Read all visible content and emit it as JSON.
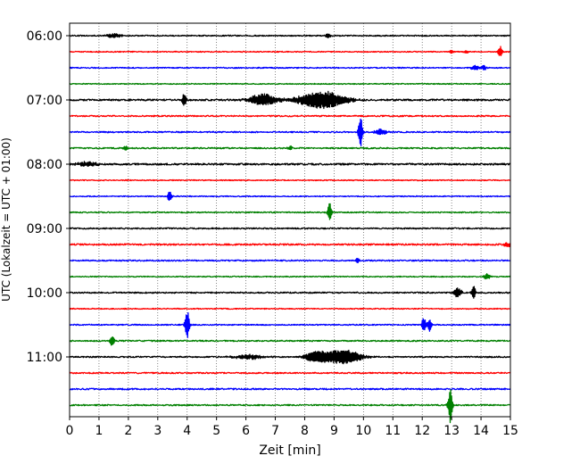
{
  "chart_data": {
    "type": "line",
    "title": "",
    "xlabel": "Zeit  [min]",
    "ylabel": "UTC (Lokalzeit = UTC + 01:00)",
    "xlim": [
      0,
      15
    ],
    "xticks": [
      0,
      1,
      2,
      3,
      4,
      5,
      6,
      7,
      8,
      9,
      10,
      11,
      12,
      13,
      14,
      15
    ],
    "ylim_traces": [
      -0.5,
      24.5
    ],
    "yticks": [
      {
        "trace": 0,
        "label": "06:00"
      },
      {
        "trace": 4,
        "label": "07:00"
      },
      {
        "trace": 8,
        "label": "08:00"
      },
      {
        "trace": 12,
        "label": "09:00"
      },
      {
        "trace": 16,
        "label": "10:00"
      },
      {
        "trace": 20,
        "label": "11:00"
      }
    ],
    "grid": {
      "x": true,
      "y": false,
      "style": "dotted"
    },
    "trace_colors": [
      "#000000",
      "#ff0000",
      "#0000ff",
      "#008000"
    ],
    "traces": [
      {
        "index": 0,
        "color": "#000000",
        "noise": 0.08,
        "events": [
          {
            "t": 1.5,
            "amp": 0.25,
            "dur": 0.4
          },
          {
            "t": 8.8,
            "amp": 0.3,
            "dur": 0.15
          }
        ]
      },
      {
        "index": 1,
        "color": "#ff0000",
        "noise": 0.07,
        "events": [
          {
            "t": 13.0,
            "amp": 0.3,
            "dur": 0.1
          },
          {
            "t": 13.5,
            "amp": 0.25,
            "dur": 0.1
          },
          {
            "t": 14.65,
            "amp": 0.8,
            "dur": 0.1
          }
        ]
      },
      {
        "index": 2,
        "color": "#0000ff",
        "noise": 0.08,
        "events": [
          {
            "t": 13.8,
            "amp": 0.3,
            "dur": 0.2
          },
          {
            "t": 14.1,
            "amp": 0.35,
            "dur": 0.1
          }
        ]
      },
      {
        "index": 3,
        "color": "#008000",
        "noise": 0.07,
        "events": []
      },
      {
        "index": 4,
        "color": "#000000",
        "noise": 0.12,
        "events": [
          {
            "t": 3.9,
            "amp": 0.9,
            "dur": 0.1
          },
          {
            "t": 6.6,
            "amp": 0.8,
            "dur": 0.7
          },
          {
            "t": 8.6,
            "amp": 1.2,
            "dur": 1.2
          }
        ]
      },
      {
        "index": 5,
        "color": "#ff0000",
        "noise": 0.09,
        "events": []
      },
      {
        "index": 6,
        "color": "#0000ff",
        "noise": 0.09,
        "events": [
          {
            "t": 9.9,
            "amp": 2.2,
            "dur": 0.1
          },
          {
            "t": 10.6,
            "amp": 0.4,
            "dur": 0.3
          }
        ]
      },
      {
        "index": 7,
        "color": "#008000",
        "noise": 0.09,
        "events": [
          {
            "t": 1.9,
            "amp": 0.35,
            "dur": 0.1
          },
          {
            "t": 7.5,
            "amp": 0.3,
            "dur": 0.1
          }
        ]
      },
      {
        "index": 8,
        "color": "#000000",
        "noise": 0.12,
        "events": [
          {
            "t": 0.6,
            "amp": 0.3,
            "dur": 0.6
          }
        ]
      },
      {
        "index": 9,
        "color": "#ff0000",
        "noise": 0.07,
        "events": []
      },
      {
        "index": 10,
        "color": "#0000ff",
        "noise": 0.07,
        "events": [
          {
            "t": 3.4,
            "amp": 0.8,
            "dur": 0.1
          }
        ]
      },
      {
        "index": 11,
        "color": "#008000",
        "noise": 0.08,
        "events": [
          {
            "t": 8.85,
            "amp": 1.3,
            "dur": 0.1
          }
        ]
      },
      {
        "index": 12,
        "color": "#000000",
        "noise": 0.09,
        "events": []
      },
      {
        "index": 13,
        "color": "#ff0000",
        "noise": 0.11,
        "events": [
          {
            "t": 14.9,
            "amp": 0.3,
            "dur": 0.2
          }
        ]
      },
      {
        "index": 14,
        "color": "#0000ff",
        "noise": 0.09,
        "events": [
          {
            "t": 9.8,
            "amp": 0.35,
            "dur": 0.1
          }
        ]
      },
      {
        "index": 15,
        "color": "#008000",
        "noise": 0.07,
        "events": [
          {
            "t": 14.2,
            "amp": 0.4,
            "dur": 0.15
          }
        ]
      },
      {
        "index": 16,
        "color": "#000000",
        "noise": 0.09,
        "events": [
          {
            "t": 13.2,
            "amp": 0.7,
            "dur": 0.2
          },
          {
            "t": 13.75,
            "amp": 0.9,
            "dur": 0.1
          }
        ]
      },
      {
        "index": 17,
        "color": "#ff0000",
        "noise": 0.07,
        "events": []
      },
      {
        "index": 18,
        "color": "#0000ff",
        "noise": 0.08,
        "events": [
          {
            "t": 4.0,
            "amp": 2.3,
            "dur": 0.1
          },
          {
            "t": 12.05,
            "amp": 1.2,
            "dur": 0.1
          },
          {
            "t": 12.25,
            "amp": 0.9,
            "dur": 0.1
          }
        ]
      },
      {
        "index": 19,
        "color": "#008000",
        "noise": 0.09,
        "events": [
          {
            "t": 1.45,
            "amp": 0.8,
            "dur": 0.1
          }
        ]
      },
      {
        "index": 20,
        "color": "#000000",
        "noise": 0.09,
        "events": [
          {
            "t": 6.1,
            "amp": 0.3,
            "dur": 0.8
          },
          {
            "t": 8.4,
            "amp": 0.7,
            "dur": 0.6
          },
          {
            "t": 9.3,
            "amp": 1.0,
            "dur": 0.9
          }
        ]
      },
      {
        "index": 21,
        "color": "#ff0000",
        "noise": 0.09,
        "events": []
      },
      {
        "index": 22,
        "color": "#0000ff",
        "noise": 0.1,
        "events": []
      },
      {
        "index": 23,
        "color": "#008000",
        "noise": 0.09,
        "events": [
          {
            "t": 12.95,
            "amp": 2.6,
            "dur": 0.1
          }
        ]
      }
    ]
  }
}
